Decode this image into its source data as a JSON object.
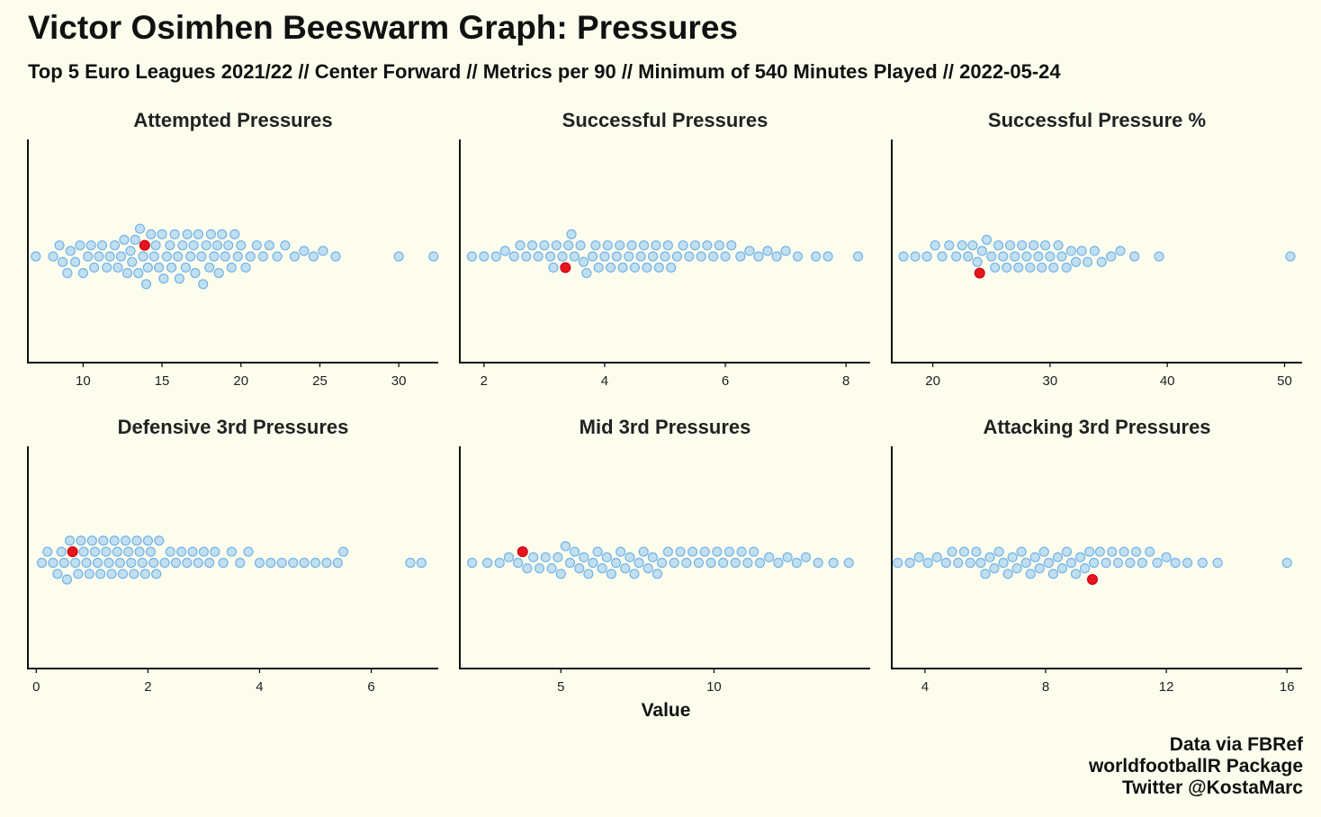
{
  "title": "Victor Osimhen Beeswarm Graph: Pressures",
  "subtitle": "Top 5 Euro Leagues 2021/22 // Center Forward // Metrics per 90 // Minimum of 540 Minutes Played // 2022-05-24",
  "xlabel": "Value",
  "caption": [
    "Data via FBRef",
    "worldfootballR Package",
    "Twitter @KostaMarc"
  ],
  "colors": {
    "background": "#fdfdee",
    "points": "#90c6f0",
    "highlight": "#e8141e"
  },
  "chart_data": [
    {
      "type": "scatter",
      "subtype": "beeswarm",
      "title": "Attempted Pressures",
      "xlim": [
        6.5,
        32.5
      ],
      "xticks": [
        "10",
        "15",
        "20",
        "25",
        "30"
      ],
      "tick_values": [
        10,
        15,
        20,
        25,
        30
      ],
      "highlight": 13.9,
      "values": [
        7.0,
        8.1,
        8.5,
        8.7,
        9.0,
        9.2,
        9.5,
        9.8,
        10.0,
        10.3,
        10.5,
        10.7,
        11.0,
        11.2,
        11.5,
        11.7,
        12.0,
        12.2,
        12.4,
        12.6,
        12.8,
        13.0,
        13.1,
        13.3,
        13.5,
        13.6,
        13.8,
        14.0,
        14.1,
        14.3,
        14.5,
        14.6,
        14.8,
        15.0,
        15.1,
        15.3,
        15.5,
        15.6,
        15.8,
        16.0,
        16.1,
        16.3,
        16.5,
        16.6,
        16.8,
        17.0,
        17.1,
        17.3,
        17.5,
        17.6,
        17.8,
        18.0,
        18.1,
        18.3,
        18.5,
        18.6,
        18.8,
        19.0,
        19.2,
        19.4,
        19.6,
        19.8,
        20.0,
        20.3,
        20.6,
        21.0,
        21.4,
        21.8,
        22.3,
        22.8,
        23.4,
        24.0,
        24.6,
        25.2,
        26.0,
        30.0,
        32.2
      ]
    },
    {
      "type": "scatter",
      "subtype": "beeswarm",
      "title": "Successful Pressures",
      "xlim": [
        1.6,
        8.4
      ],
      "xticks": [
        "2",
        "4",
        "6",
        "8"
      ],
      "tick_values": [
        2,
        4,
        6,
        8
      ],
      "highlight": 3.35,
      "values": [
        1.8,
        2.0,
        2.2,
        2.35,
        2.5,
        2.6,
        2.7,
        2.8,
        2.9,
        3.0,
        3.1,
        3.15,
        3.2,
        3.3,
        3.4,
        3.45,
        3.5,
        3.6,
        3.65,
        3.7,
        3.8,
        3.85,
        3.9,
        4.0,
        4.05,
        4.1,
        4.2,
        4.25,
        4.3,
        4.4,
        4.45,
        4.5,
        4.6,
        4.65,
        4.7,
        4.8,
        4.85,
        4.9,
        5.0,
        5.05,
        5.1,
        5.2,
        5.3,
        5.4,
        5.5,
        5.6,
        5.7,
        5.8,
        5.9,
        6.0,
        6.1,
        6.25,
        6.4,
        6.55,
        6.7,
        6.85,
        7.0,
        7.2,
        7.5,
        7.7,
        8.2
      ]
    },
    {
      "type": "scatter",
      "subtype": "beeswarm",
      "title": "Successful Pressure %",
      "xlim": [
        16.5,
        51.5
      ],
      "xticks": [
        "20",
        "30",
        "40",
        "50"
      ],
      "tick_values": [
        20,
        30,
        40,
        50
      ],
      "highlight": 24.0,
      "values": [
        17.5,
        18.5,
        19.5,
        20.2,
        20.8,
        21.4,
        22.0,
        22.5,
        23.0,
        23.4,
        23.8,
        24.2,
        24.6,
        25.0,
        25.3,
        25.6,
        26.0,
        26.3,
        26.6,
        27.0,
        27.3,
        27.6,
        28.0,
        28.3,
        28.6,
        29.0,
        29.3,
        29.6,
        30.0,
        30.3,
        30.7,
        31.0,
        31.4,
        31.8,
        32.2,
        32.7,
        33.2,
        33.8,
        34.4,
        35.2,
        36.0,
        37.2,
        39.3,
        50.5
      ]
    },
    {
      "type": "scatter",
      "subtype": "beeswarm",
      "title": "Defensive 3rd Pressures",
      "xlim": [
        -0.15,
        7.2
      ],
      "xticks": [
        "0",
        "2",
        "4",
        "6"
      ],
      "tick_values": [
        0,
        2,
        4,
        6
      ],
      "highlight": 0.65,
      "values": [
        0.1,
        0.2,
        0.3,
        0.38,
        0.45,
        0.5,
        0.55,
        0.6,
        0.7,
        0.75,
        0.8,
        0.85,
        0.9,
        0.95,
        1.0,
        1.05,
        1.1,
        1.15,
        1.2,
        1.25,
        1.3,
        1.35,
        1.4,
        1.45,
        1.5,
        1.55,
        1.6,
        1.65,
        1.7,
        1.75,
        1.8,
        1.85,
        1.9,
        1.95,
        2.0,
        2.05,
        2.1,
        2.15,
        2.2,
        2.3,
        2.4,
        2.5,
        2.6,
        2.7,
        2.8,
        2.9,
        3.0,
        3.1,
        3.2,
        3.35,
        3.5,
        3.65,
        3.8,
        4.0,
        4.2,
        4.4,
        4.6,
        4.8,
        5.0,
        5.2,
        5.4,
        5.5,
        6.7,
        6.9
      ]
    },
    {
      "type": "scatter",
      "subtype": "beeswarm",
      "title": "Mid 3rd Pressures",
      "xlim": [
        1.7,
        15.1
      ],
      "xticks": [
        "5",
        "10"
      ],
      "tick_values": [
        5,
        10
      ],
      "highlight": 3.75,
      "values": [
        2.1,
        2.6,
        3.0,
        3.3,
        3.6,
        3.9,
        4.1,
        4.3,
        4.5,
        4.7,
        4.9,
        5.0,
        5.15,
        5.3,
        5.45,
        5.6,
        5.75,
        5.9,
        6.05,
        6.2,
        6.35,
        6.5,
        6.65,
        6.8,
        6.95,
        7.1,
        7.25,
        7.4,
        7.55,
        7.7,
        7.85,
        8.0,
        8.15,
        8.3,
        8.5,
        8.7,
        8.9,
        9.1,
        9.3,
        9.5,
        9.7,
        9.9,
        10.1,
        10.3,
        10.5,
        10.7,
        10.9,
        11.1,
        11.3,
        11.5,
        11.8,
        12.1,
        12.4,
        12.7,
        13.0,
        13.4,
        13.9,
        14.4
      ]
    },
    {
      "type": "scatter",
      "subtype": "beeswarm",
      "title": "Attacking 3rd Pressures",
      "xlim": [
        2.9,
        16.5
      ],
      "xticks": [
        "4",
        "8",
        "12",
        "16"
      ],
      "tick_values": [
        4,
        8,
        12,
        16
      ],
      "highlight": 9.55,
      "values": [
        3.1,
        3.5,
        3.8,
        4.1,
        4.4,
        4.7,
        4.9,
        5.1,
        5.3,
        5.5,
        5.7,
        5.85,
        6.0,
        6.15,
        6.3,
        6.45,
        6.6,
        6.75,
        6.9,
        7.05,
        7.2,
        7.35,
        7.5,
        7.65,
        7.8,
        7.95,
        8.1,
        8.25,
        8.4,
        8.55,
        8.7,
        8.85,
        9.0,
        9.15,
        9.3,
        9.45,
        9.6,
        9.8,
        10.0,
        10.2,
        10.4,
        10.6,
        10.8,
        11.0,
        11.2,
        11.45,
        11.7,
        12.0,
        12.3,
        12.7,
        13.2,
        13.7,
        16.0
      ]
    }
  ]
}
